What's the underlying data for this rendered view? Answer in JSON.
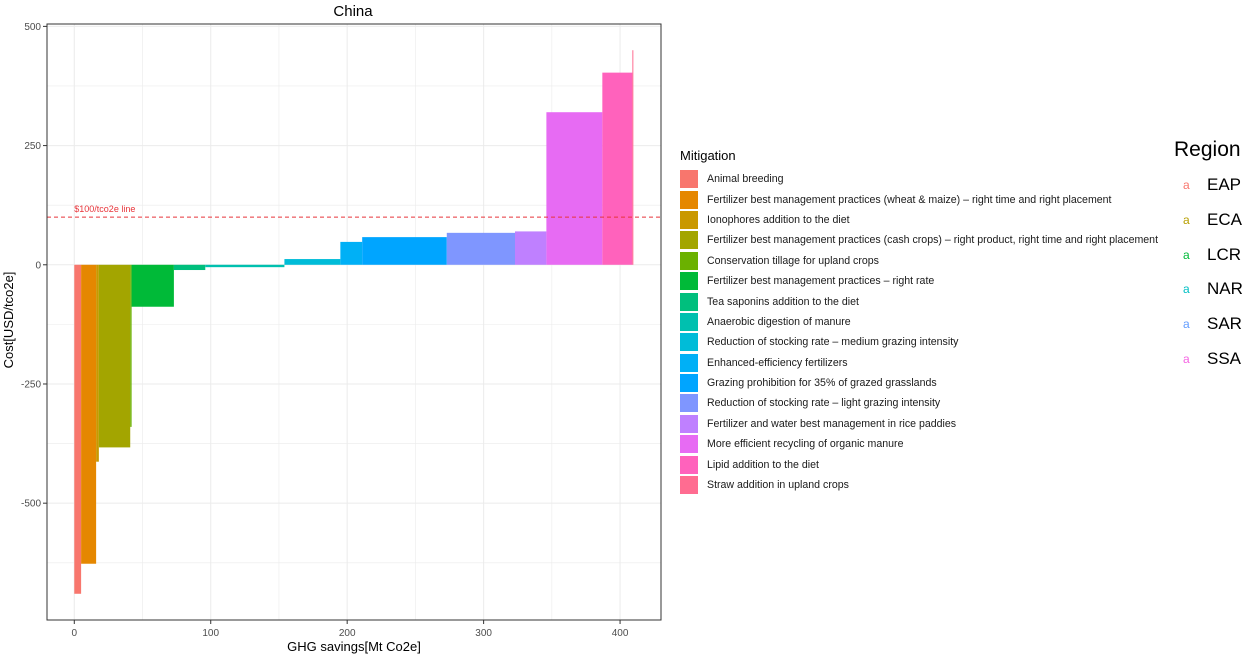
{
  "chart_data": {
    "type": "bar",
    "title": "China",
    "xlabel": "GHG savings[Mt Co2e]",
    "ylabel": "Cost[USD/tco2e]",
    "xlim": [
      -20,
      430
    ],
    "ylim": [
      -745,
      505
    ],
    "xticks": [
      0,
      100,
      200,
      300,
      400
    ],
    "yticks": [
      -500,
      -250,
      0,
      250,
      500
    ],
    "grid": true,
    "reference_line": {
      "y": 100,
      "label": "$100/tco2e line",
      "color": "#E8343A"
    },
    "series": [
      {
        "name": "Animal breeding",
        "color": "#F8766D",
        "x_start": 0,
        "x_end": 5,
        "y": -690
      },
      {
        "name": "Fertilizer best management practices (wheat & maize) – right time and right placement",
        "color": "#E58700",
        "x_start": 5,
        "x_end": 16,
        "y": -627
      },
      {
        "name": "Ionophores addition to the diet",
        "color": "#C99800",
        "x_start": 16,
        "x_end": 18,
        "y": -413
      },
      {
        "name": "Fertilizer best management practices (cash crops) – right product, right time and right placement",
        "color": "#A3A500",
        "x_start": 18,
        "x_end": 41,
        "y": -383
      },
      {
        "name": "Conservation tillage for upland crops",
        "color": "#6BB100",
        "x_start": 41,
        "x_end": 42,
        "y": -340
      },
      {
        "name": "Fertilizer best management practices – right rate",
        "color": "#00BA38",
        "x_start": 42,
        "x_end": 73,
        "y": -88
      },
      {
        "name": "Tea saponins addition to the diet",
        "color": "#00BF7D",
        "x_start": 73,
        "x_end": 96,
        "y": -11
      },
      {
        "name": "Anaerobic digestion of manure",
        "color": "#00C0AF",
        "x_start": 96,
        "x_end": 154,
        "y": -5
      },
      {
        "name": "Reduction of stocking rate – medium grazing intensity",
        "color": "#00BCD8",
        "x_start": 154,
        "x_end": 195,
        "y": 12
      },
      {
        "name": "Enhanced-efficiency fertilizers",
        "color": "#00B0F6",
        "x_start": 195,
        "x_end": 211,
        "y": 48
      },
      {
        "name": "Grazing prohibition for 35% of grazed grasslands",
        "color": "#00A5FF",
        "x_start": 211,
        "x_end": 273,
        "y": 58
      },
      {
        "name": "Reduction of stocking rate – light grazing intensity",
        "color": "#7F96FF",
        "x_start": 273,
        "x_end": 323,
        "y": 67
      },
      {
        "name": "Fertilizer and water best management in rice paddies",
        "color": "#BF80FF",
        "x_start": 323,
        "x_end": 346,
        "y": 70
      },
      {
        "name": "More efficient recycling of organic manure",
        "color": "#E76BF3",
        "x_start": 346,
        "x_end": 387,
        "y": 320
      },
      {
        "name": "Lipid addition to the diet",
        "color": "#FF62BC",
        "x_start": 387,
        "x_end": 409,
        "y": 403
      },
      {
        "name": "Straw addition in upland crops",
        "color": "#FF6C91",
        "x_start": 409,
        "x_end": 409.7,
        "y": 450
      }
    ],
    "legend_title": "Mitigation",
    "legend_position": "right"
  },
  "region_legend": {
    "title": "Region",
    "key_glyph": "a",
    "items": [
      {
        "label": "EAP",
        "color": "#F8766D"
      },
      {
        "label": "ECA",
        "color": "#B79F00"
      },
      {
        "label": "LCR",
        "color": "#00BA38"
      },
      {
        "label": "NAR",
        "color": "#00BFC4"
      },
      {
        "label": "SAR",
        "color": "#619CFF"
      },
      {
        "label": "SSA",
        "color": "#F564E3"
      }
    ]
  }
}
